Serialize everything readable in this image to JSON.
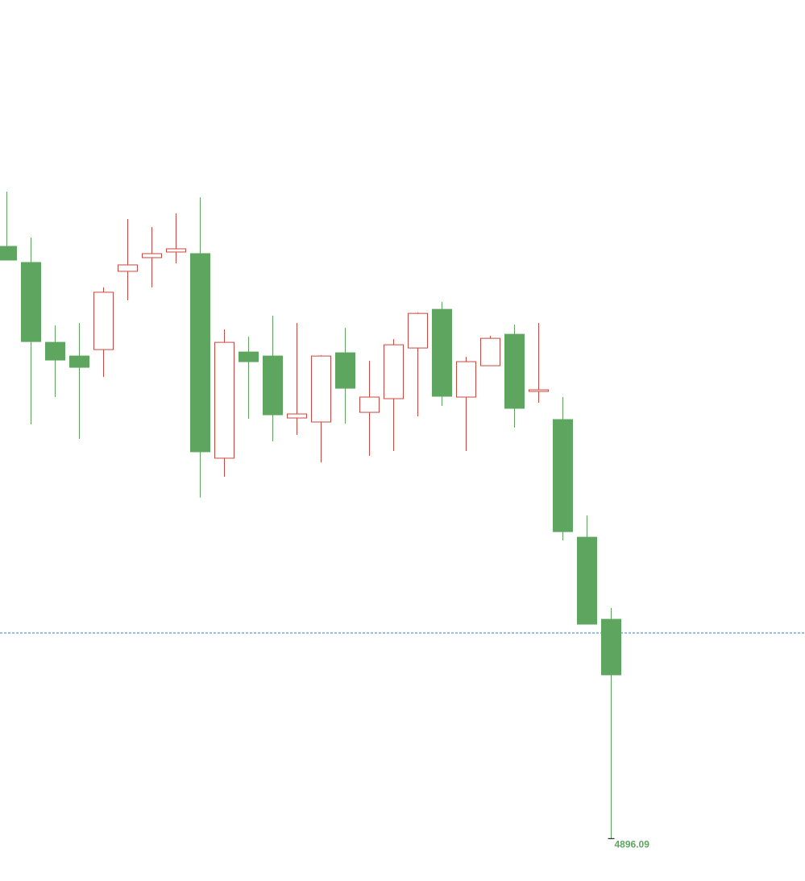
{
  "chart_data": {
    "type": "candlestick",
    "up_color": "#c9483f",
    "down_color": "#5ea65f",
    "reference_color": "#2f7fc4",
    "ylim": [
      4875,
      5313
    ],
    "open": [
      5190.5,
      5182.5,
      5142.8,
      5136.0,
      5139.2,
      5178.1,
      5184.9,
      5187.7,
      5186.9,
      5085.2,
      5138.0,
      5136.0,
      5105.2,
      5103.2,
      5137.6,
      5108.0,
      5114.8,
      5140.0,
      5159.2,
      5115.6,
      5131.2,
      5146.8,
      5118.4,
      5104.4,
      5045.9,
      5005.1
    ],
    "high": [
      5217.7,
      5194.9,
      5151.2,
      5152.4,
      5170.1,
      5204.1,
      5200.1,
      5206.9,
      5214.9,
      5149.2,
      5145.6,
      5156.0,
      5152.4,
      5136.4,
      5150.0,
      5133.6,
      5144.4,
      5157.6,
      5162.9,
      5135.6,
      5146.0,
      5151.6,
      5152.4,
      5115.6,
      5056.7,
      5010.7
    ],
    "low": [
      5183.7,
      5102.0,
      5115.6,
      5094.8,
      5125.6,
      5163.7,
      5170.1,
      5182.1,
      5065.6,
      5076.0,
      5104.8,
      5093.6,
      5096.8,
      5083.2,
      5102.4,
      5086.4,
      5088.8,
      5106.0,
      5111.2,
      5088.8,
      5131.2,
      5100.4,
      5112.8,
      5044.3,
      5002.7,
      4896.09
    ],
    "close": [
      5183.7,
      5143.2,
      5134.0,
      5130.4,
      5167.7,
      5181.3,
      5186.9,
      5189.3,
      5088.4,
      5142.8,
      5133.2,
      5106.8,
      5107.2,
      5136.0,
      5120.0,
      5115.6,
      5141.6,
      5157.2,
      5116.0,
      5133.2,
      5144.8,
      5110.0,
      5119.2,
      5048.7,
      5002.7,
      4977.5
    ],
    "low_labels": [
      null,
      null,
      null,
      null,
      null,
      null,
      null,
      null,
      null,
      null,
      null,
      null,
      null,
      null,
      null,
      null,
      null,
      null,
      null,
      null,
      null,
      null,
      null,
      null,
      null,
      "4896.09"
    ],
    "reference_line": 4998.3
  }
}
